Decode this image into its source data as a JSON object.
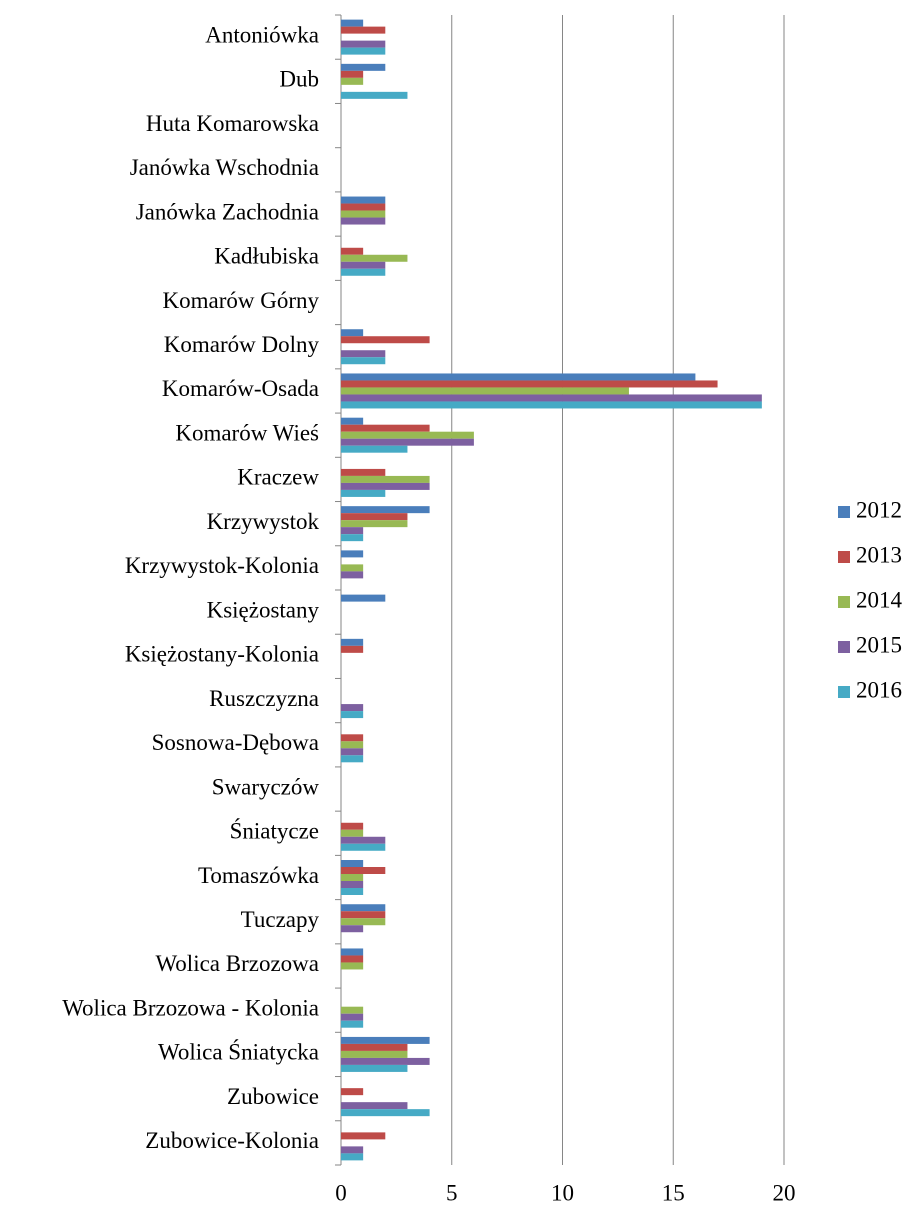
{
  "chart_data": {
    "type": "hbar",
    "categories": [
      "Antoniówka",
      "Dub",
      "Huta Komarowska",
      "Janówka Wschodnia",
      "Janówka Zachodnia",
      "Kadłubiska",
      "Komarów Górny",
      "Komarów Dolny",
      "Komarów-Osada",
      "Komarów Wieś",
      "Kraczew",
      "Krzywystok",
      "Krzywystok-Kolonia",
      "Księżostany",
      "Księżostany-Kolonia",
      "Ruszczyzna",
      "Sosnowa-Dębowa",
      "Swaryczów",
      "Śniatycze",
      "Tomaszówka",
      "Tuczapy",
      "Wolica Brzozowa",
      "Wolica Brzozowa - Kolonia",
      "Wolica Śniatycka",
      "Zubowice",
      "Zubowice-Kolonia"
    ],
    "series": [
      {
        "name": "2012",
        "color": "#4a7ebb",
        "values": [
          1,
          2,
          0,
          0,
          2,
          0,
          0,
          1,
          16,
          1,
          0,
          4,
          1,
          2,
          1,
          0,
          0,
          0,
          0,
          1,
          2,
          1,
          0,
          4,
          0,
          0
        ]
      },
      {
        "name": "2013",
        "color": "#be4b48",
        "values": [
          2,
          1,
          0,
          0,
          2,
          1,
          0,
          4,
          17,
          4,
          2,
          3,
          0,
          0,
          1,
          0,
          1,
          0,
          1,
          2,
          2,
          1,
          0,
          3,
          1,
          2
        ]
      },
      {
        "name": "2014",
        "color": "#98b954",
        "values": [
          0,
          1,
          0,
          0,
          2,
          3,
          0,
          0,
          13,
          6,
          4,
          3,
          1,
          0,
          0,
          0,
          1,
          0,
          1,
          1,
          2,
          1,
          1,
          3,
          0,
          0
        ]
      },
      {
        "name": "2015",
        "color": "#7d60a0",
        "values": [
          2,
          0,
          0,
          0,
          2,
          2,
          0,
          2,
          19,
          6,
          4,
          1,
          1,
          0,
          0,
          1,
          1,
          0,
          2,
          1,
          1,
          0,
          1,
          4,
          3,
          1
        ]
      },
      {
        "name": "2016",
        "color": "#46aac5",
        "values": [
          2,
          3,
          0,
          0,
          0,
          2,
          0,
          2,
          19,
          3,
          2,
          1,
          0,
          0,
          0,
          1,
          1,
          0,
          2,
          1,
          0,
          0,
          1,
          3,
          4,
          1
        ]
      }
    ],
    "xlim": [
      0,
      20
    ],
    "xticks": [
      0,
      5,
      10,
      15,
      20
    ],
    "grid": true,
    "legend": "right"
  }
}
